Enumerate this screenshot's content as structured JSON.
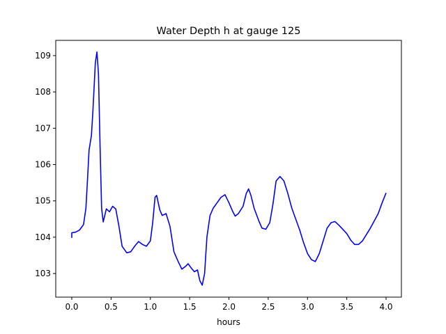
{
  "chart_data": {
    "type": "line",
    "title": "Water Depth h at gauge 125",
    "xlabel": "hours",
    "ylabel": "",
    "xlim": [
      -0.204,
      4.195
    ],
    "ylim": [
      102.35,
      109.42
    ],
    "xticks": [
      0.0,
      0.5,
      1.0,
      1.5,
      2.0,
      2.5,
      3.0,
      3.5,
      4.0
    ],
    "xtick_labels": [
      "0.0",
      "0.5",
      "1.0",
      "1.5",
      "2.0",
      "2.5",
      "3.0",
      "3.5",
      "4.0"
    ],
    "yticks": [
      103,
      104,
      105,
      106,
      107,
      108,
      109
    ],
    "ytick_labels": [
      "103",
      "104",
      "105",
      "106",
      "107",
      "108",
      "109"
    ],
    "grid": false,
    "series": [
      {
        "name": "h",
        "color": "#0000ff",
        "x": [
          0,
          0,
          0.05,
          0.1,
          0.15,
          0.18,
          0.2,
          0.22,
          0.25,
          0.27,
          0.3,
          0.32,
          0.34,
          0.36,
          0.38,
          0.4,
          0.44,
          0.48,
          0.52,
          0.56,
          0.6,
          0.64,
          0.7,
          0.75,
          0.8,
          0.85,
          0.9,
          0.95,
          1.0,
          1.03,
          1.06,
          1.08,
          1.12,
          1.15,
          1.2,
          1.25,
          1.3,
          1.35,
          1.4,
          1.45,
          1.48,
          1.52,
          1.56,
          1.6,
          1.63,
          1.66,
          1.69,
          1.72,
          1.76,
          1.8,
          1.85,
          1.9,
          1.95,
          2.0,
          2.05,
          2.08,
          2.12,
          2.18,
          2.22,
          2.25,
          2.28,
          2.32,
          2.38,
          2.42,
          2.47,
          2.52,
          2.56,
          2.6,
          2.65,
          2.7,
          2.75,
          2.8,
          2.9,
          2.95,
          3.0,
          3.05,
          3.1,
          3.15,
          3.2,
          3.25,
          3.3,
          3.35,
          3.4,
          3.5,
          3.55,
          3.6,
          3.65,
          3.7,
          3.8,
          3.9,
          3.95,
          4.0
        ],
        "y": [
          103.98,
          104.12,
          104.14,
          104.2,
          104.35,
          104.8,
          105.6,
          106.4,
          106.8,
          107.5,
          108.8,
          109.1,
          108.5,
          106.5,
          104.8,
          104.42,
          104.78,
          104.7,
          104.85,
          104.78,
          104.3,
          103.75,
          103.57,
          103.6,
          103.75,
          103.88,
          103.8,
          103.75,
          103.9,
          104.4,
          105.1,
          105.15,
          104.75,
          104.6,
          104.65,
          104.3,
          103.6,
          103.35,
          103.12,
          103.2,
          103.27,
          103.15,
          103.05,
          103.1,
          102.8,
          102.68,
          103.0,
          104.0,
          104.6,
          104.8,
          104.95,
          105.1,
          105.17,
          104.95,
          104.7,
          104.58,
          104.65,
          104.85,
          105.2,
          105.33,
          105.15,
          104.8,
          104.45,
          104.25,
          104.22,
          104.4,
          104.9,
          105.55,
          105.67,
          105.55,
          105.2,
          104.8,
          104.2,
          103.85,
          103.55,
          103.38,
          103.33,
          103.55,
          103.9,
          104.25,
          104.4,
          104.43,
          104.33,
          104.1,
          103.92,
          103.8,
          103.8,
          103.9,
          104.25,
          104.65,
          104.95,
          105.22
        ]
      }
    ]
  }
}
